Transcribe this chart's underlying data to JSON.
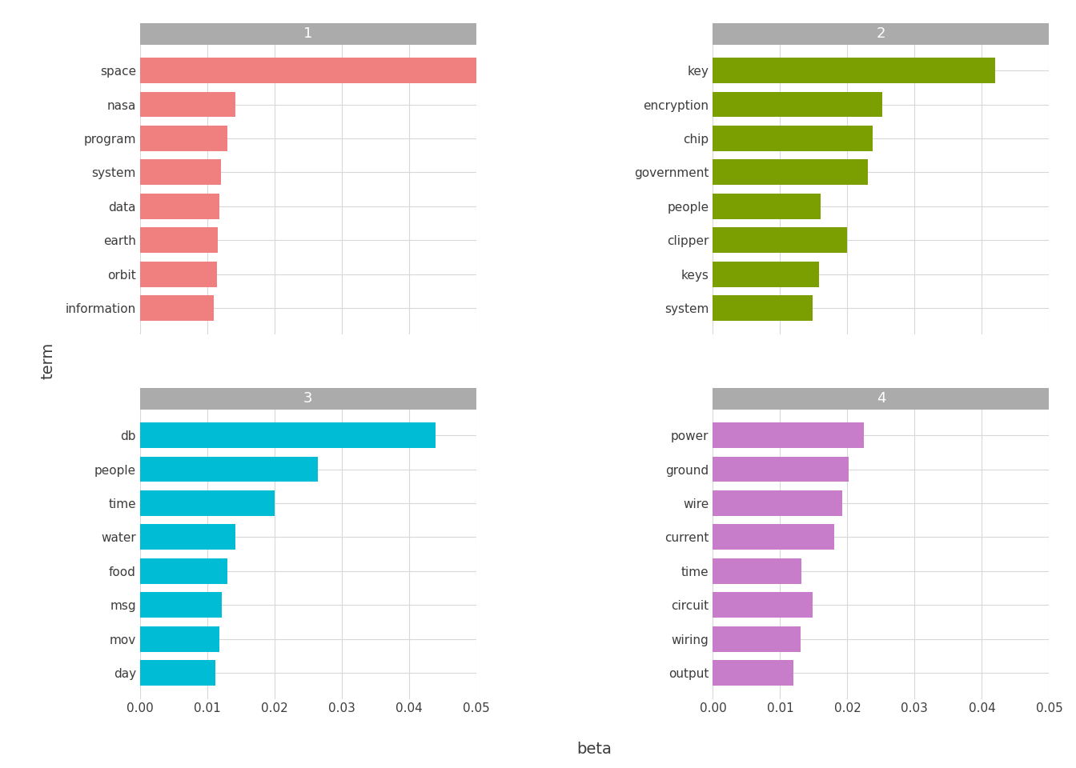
{
  "topics": [
    {
      "id": "1",
      "color": "#F08080",
      "terms": [
        "space",
        "nasa",
        "program",
        "system",
        "data",
        "earth",
        "orbit",
        "information"
      ],
      "betas": [
        0.0502,
        0.0142,
        0.013,
        0.012,
        0.0118,
        0.0116,
        0.0115,
        0.011
      ]
    },
    {
      "id": "2",
      "color": "#7B9E00",
      "terms": [
        "key",
        "encryption",
        "chip",
        "government",
        "people",
        "clipper",
        "keys",
        "system"
      ],
      "betas": [
        0.042,
        0.0252,
        0.0238,
        0.023,
        0.016,
        0.02,
        0.0158,
        0.0148
      ]
    },
    {
      "id": "3",
      "color": "#00BCD4",
      "terms": [
        "db",
        "people",
        "time",
        "water",
        "food",
        "msg",
        "mov",
        "day"
      ],
      "betas": [
        0.044,
        0.0265,
        0.02,
        0.0142,
        0.013,
        0.0122,
        0.0118,
        0.0112
      ]
    },
    {
      "id": "4",
      "color": "#C77DCA",
      "terms": [
        "power",
        "ground",
        "wire",
        "current",
        "time",
        "circuit",
        "wiring",
        "output"
      ],
      "betas": [
        0.0225,
        0.0202,
        0.0192,
        0.018,
        0.0132,
        0.0148,
        0.013,
        0.012
      ]
    }
  ],
  "xlim": [
    0,
    0.05
  ],
  "xticks": [
    0.0,
    0.01,
    0.02,
    0.03,
    0.04,
    0.05
  ],
  "xlabel": "beta",
  "ylabel": "term",
  "background_color": "#ffffff",
  "panel_bg": "#ffffff",
  "header_bg": "#ABABAB",
  "grid_color": "#D8D8D8",
  "header_text_color": "#ffffff",
  "axis_text_color": "#3C3C3C",
  "label_fontsize": 14,
  "tick_fontsize": 11,
  "header_fontsize": 13
}
